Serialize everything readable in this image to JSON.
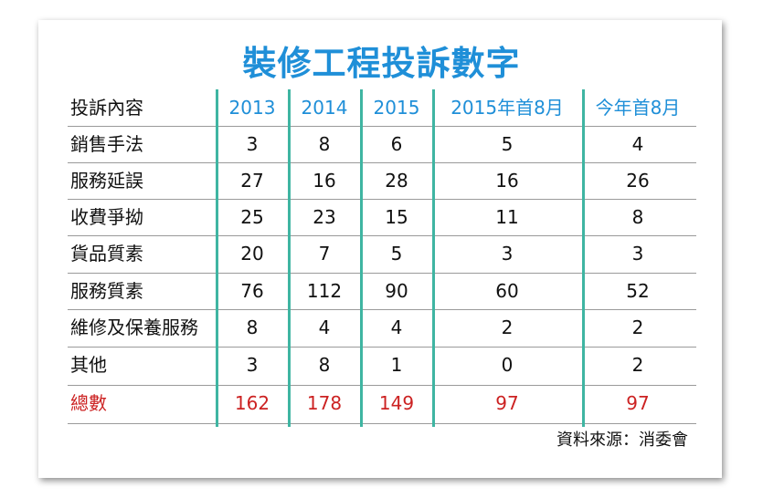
{
  "chart_data": {
    "type": "table",
    "title": "裝修工程投訴數字",
    "corner_header": "投訴內容",
    "columns": [
      "2013",
      "2014",
      "2015",
      "2015年首8月",
      "今年首8月"
    ],
    "rows": [
      {
        "label": "銷售手法",
        "values": [
          "3",
          "8",
          "6",
          "5",
          "4"
        ]
      },
      {
        "label": "服務延誤",
        "values": [
          "27",
          "16",
          "28",
          "16",
          "26"
        ]
      },
      {
        "label": "收費爭拗",
        "values": [
          "25",
          "23",
          "15",
          "11",
          "8"
        ]
      },
      {
        "label": "貨品質素",
        "values": [
          "20",
          "7",
          "5",
          "3",
          "3"
        ]
      },
      {
        "label": "服務質素",
        "values": [
          "76",
          "112",
          "90",
          "60",
          "52"
        ]
      },
      {
        "label": "維修及保養服務",
        "values": [
          "8",
          "4",
          "4",
          "2",
          "2"
        ]
      },
      {
        "label": "其他",
        "values": [
          "3",
          "8",
          "1",
          "0",
          "2"
        ]
      },
      {
        "label": "總數",
        "values": [
          "162",
          "178",
          "149",
          "97",
          "97"
        ]
      }
    ],
    "source": "資料來源：消委會",
    "colors": {
      "title": "#1f8fd8",
      "header": "#1f8fd8",
      "total": "#cc2222",
      "divider": "#3fb5a2"
    }
  }
}
